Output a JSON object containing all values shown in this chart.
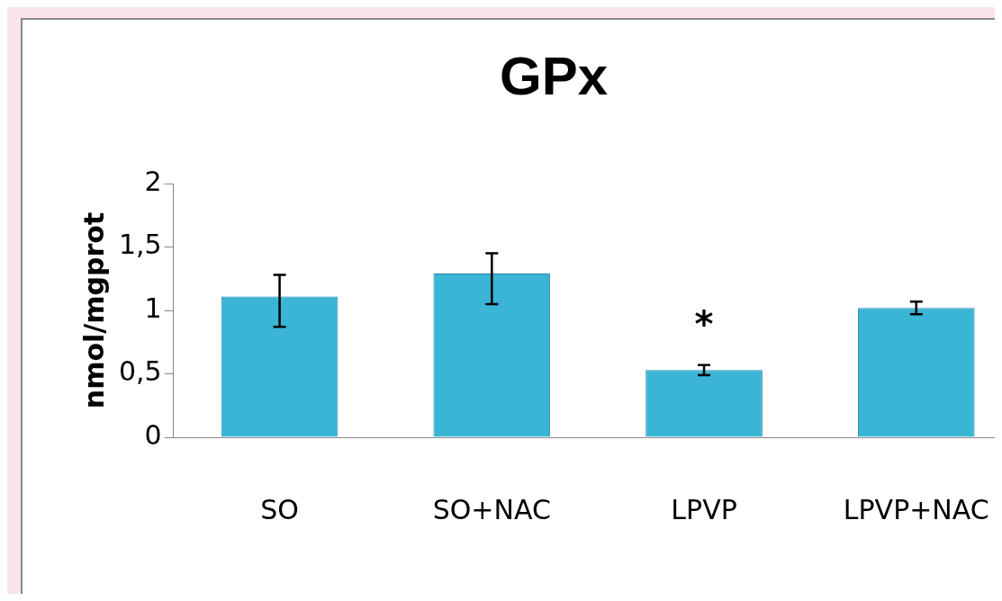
{
  "chart_data": {
    "type": "bar",
    "title": "GPx",
    "ylabel": "nmol/mgprot",
    "categories": [
      "SO",
      "SO+NAC",
      "LPVP",
      "LPVP+NAC"
    ],
    "values": [
      1.11,
      1.29,
      0.53,
      1.02
    ],
    "errors": [
      [
        0.87,
        1.28
      ],
      [
        1.05,
        1.45
      ],
      0.04,
      0.05
    ],
    "color": "#3bb5d6",
    "ylim": [
      0,
      2
    ],
    "yticks": [
      0,
      {
        "value": 0.5,
        "label": "0,5"
      },
      1,
      {
        "value": 1.5,
        "label": "1,5"
      },
      2
    ],
    "annotations": [
      {
        "text": "*",
        "x": "LPVP",
        "y": 0.57
      }
    ],
    "grid": false,
    "legend": false
  }
}
